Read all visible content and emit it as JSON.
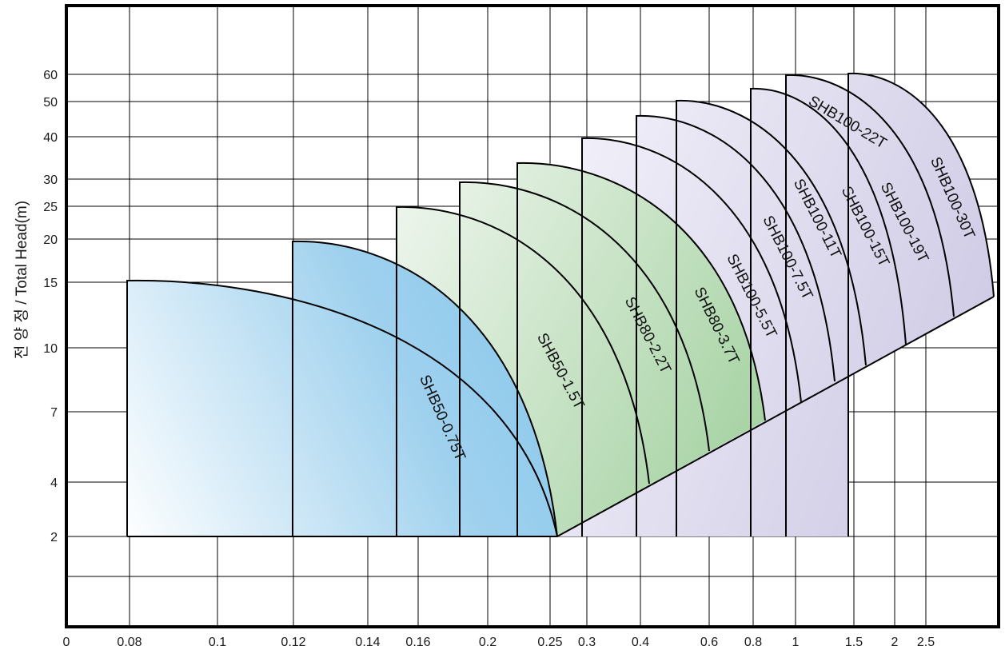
{
  "chart_data": {
    "type": "area",
    "title": "",
    "xlabel": "",
    "ylabel": "전 양 정 / Total Head(m)",
    "x_ticks": [
      "0",
      "0.08",
      "0.1",
      "0.12",
      "0.14",
      "0.16",
      "0.2",
      "0.25",
      "0.3",
      "0.4",
      "0.6",
      "0.8",
      "1",
      "1.5",
      "2",
      "2.5"
    ],
    "y_ticks": [
      "60",
      "50",
      "40",
      "30",
      "25",
      "20",
      "15",
      "10",
      "7",
      "4",
      "2"
    ],
    "grid": true,
    "series": [
      {
        "name": "SHB50-0.75T",
        "max_head": 15,
        "min_head": 2,
        "min_flow": 0.08,
        "max_flow": 0.25
      },
      {
        "name": "SHB50-1.5T",
        "max_head": 19,
        "min_head": 2,
        "min_flow": 0.12,
        "max_flow": 0.25
      },
      {
        "name": "SHB80-2.2T",
        "max_head": 25,
        "min_head": 4,
        "min_flow": 0.16,
        "max_flow": 0.4
      },
      {
        "name": "SHB80-3.7T",
        "max_head": 30,
        "min_head": 5.3,
        "min_flow": 0.2,
        "max_flow": 0.6
      },
      {
        "name": "SHB100-5.5T",
        "max_head": 33,
        "min_head": 6.2,
        "min_flow": 0.25,
        "max_flow": 0.8
      },
      {
        "name": "SHB100-7.5T",
        "max_head": 38,
        "min_head": 7.2,
        "min_flow": 0.3,
        "max_flow": 1
      },
      {
        "name": "SHB100-11T",
        "max_head": 45,
        "min_head": 8,
        "min_flow": 0.4,
        "max_flow": 1.2
      },
      {
        "name": "SHB100-15T",
        "max_head": 50,
        "min_head": 9,
        "min_flow": 0.5,
        "max_flow": 1.5
      },
      {
        "name": "SHB100-19T",
        "max_head": 55,
        "min_head": 10,
        "min_flow": 0.6,
        "max_flow": 1.9
      },
      {
        "name": "SHB100-22T",
        "max_head": 60,
        "min_head": 11.5,
        "min_flow": 0.8,
        "max_flow": 2.4
      },
      {
        "name": "SHB100-30T",
        "max_head": 60,
        "min_head": 12.5,
        "min_flow": 1.5,
        "max_flow": 2.8
      }
    ]
  }
}
